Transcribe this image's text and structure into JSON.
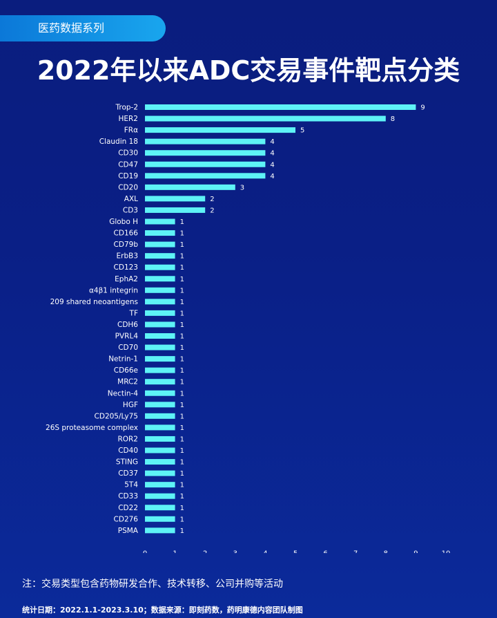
{
  "header": {
    "series_label": "医药数据系列",
    "title": "2022年以来ADC交易事件靶点分类"
  },
  "chart_data": {
    "type": "bar",
    "orientation": "horizontal",
    "bar_color": "#5ef3f6",
    "categories": [
      "Trop-2",
      "HER2",
      "FRα",
      "Claudin 18",
      "CD30",
      "CD47",
      "CD19",
      "CD20",
      "AXL",
      "CD3",
      "Globo H",
      "CD166",
      "CD79b",
      "ErbB3",
      "CD123",
      "EphA2",
      "α4β1 integrin",
      "209 shared neoantigens",
      "TF",
      "CDH6",
      "PVRL4",
      "CD70",
      "Netrin-1",
      "CD66e",
      "MRC2",
      "Nectin-4",
      "HGF",
      "CD205/Ly75",
      "26S proteasome complex",
      "ROR2",
      "CD40",
      "STING",
      "CD37",
      "5T4",
      "CD33",
      "CD22",
      "CD276",
      "PSMA"
    ],
    "values": [
      9,
      8,
      5,
      4,
      4,
      4,
      4,
      3,
      2,
      2,
      1,
      1,
      1,
      1,
      1,
      1,
      1,
      1,
      1,
      1,
      1,
      1,
      1,
      1,
      1,
      1,
      1,
      1,
      1,
      1,
      1,
      1,
      1,
      1,
      1,
      1,
      1,
      1
    ],
    "xlim": [
      0,
      10
    ],
    "xticks": [
      0,
      1,
      2,
      3,
      4,
      5,
      6,
      7,
      8,
      9,
      10
    ],
    "grid": false
  },
  "footer": {
    "note": "注：交易类型包含药物研发合作、技术转移、公司并购等活动",
    "source": "统计日期：2022.1.1-2023.3.10；数据来源：即刻药数，药明康德内容团队制图"
  }
}
